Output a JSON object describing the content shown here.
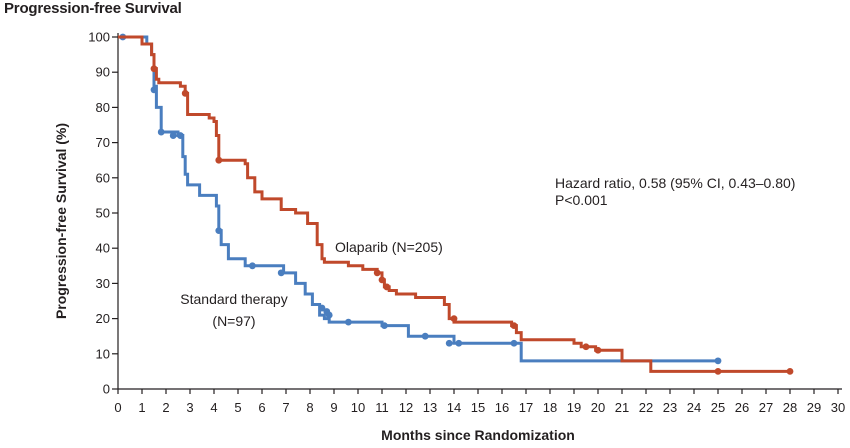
{
  "title": "Progression-free Survival",
  "chart_data": {
    "type": "line",
    "step": true,
    "xlabel": "Months since Randomization",
    "ylabel": "Progression-free Survival (%)",
    "xlim": [
      0,
      30
    ],
    "ylim": [
      0,
      100
    ],
    "xticks": [
      0,
      1,
      2,
      3,
      4,
      5,
      6,
      7,
      8,
      9,
      10,
      11,
      12,
      13,
      14,
      15,
      16,
      17,
      18,
      19,
      20,
      21,
      22,
      23,
      24,
      25,
      26,
      27,
      28,
      29,
      30
    ],
    "yticks": [
      0,
      10,
      20,
      30,
      40,
      50,
      60,
      70,
      80,
      90,
      100
    ],
    "grid": false,
    "annotations": [
      {
        "text": "Hazard ratio, 0.58 (95% CI, 0.43–0.80)"
      },
      {
        "text": "P<0.001"
      }
    ],
    "series": [
      {
        "name": "Olaparib (N=205)",
        "color": "#c0492b",
        "x": [
          0,
          1.0,
          1.4,
          1.5,
          1.6,
          1.7,
          2.6,
          2.8,
          2.9,
          3.8,
          4.0,
          4.1,
          4.2,
          5.3,
          5.4,
          5.7,
          6.0,
          6.8,
          7.4,
          7.9,
          8.3,
          8.5,
          8.6,
          9.6,
          10.2,
          10.8,
          11.0,
          11.1,
          11.3,
          11.6,
          12.4,
          13.6,
          13.8,
          14.0,
          16.4,
          16.6,
          16.8,
          19.0,
          19.3,
          19.9,
          21.0,
          22.2,
          28.0
        ],
        "y": [
          100,
          98,
          95,
          91,
          88,
          87,
          86,
          84,
          78,
          77,
          76,
          72,
          65,
          64,
          60,
          56,
          54,
          51,
          50,
          47,
          41,
          37,
          36,
          35,
          34,
          33,
          31,
          29,
          28,
          27,
          26,
          24,
          20,
          19,
          18,
          16,
          14,
          13,
          12,
          11,
          8,
          5,
          5
        ],
        "censor_points": [
          [
            1.5,
            91
          ],
          [
            2.8,
            84
          ],
          [
            4.2,
            65
          ],
          [
            10.8,
            33
          ],
          [
            11.0,
            31
          ],
          [
            11.2,
            29
          ],
          [
            14.0,
            20
          ],
          [
            16.5,
            18
          ],
          [
            19.5,
            12
          ],
          [
            20.0,
            11
          ],
          [
            25.0,
            5
          ],
          [
            28.0,
            5
          ]
        ]
      },
      {
        "name": "Standard therapy (N=97)",
        "color": "#4a7ebf",
        "x": [
          0,
          1.2,
          1.4,
          1.5,
          1.6,
          1.8,
          2.5,
          2.7,
          2.8,
          2.9,
          3.4,
          4.1,
          4.2,
          4.3,
          4.6,
          5.3,
          6.9,
          7.4,
          7.8,
          8.1,
          8.4,
          8.6,
          8.8,
          11.0,
          12.1,
          14.0,
          16.8,
          25.0
        ],
        "y": [
          100,
          98,
          95,
          86,
          80,
          73,
          72,
          66,
          61,
          58,
          55,
          52,
          45,
          41,
          37,
          35,
          33,
          30,
          27,
          24,
          21,
          20,
          19,
          18,
          15,
          13,
          8,
          8
        ],
        "censor_points": [
          [
            0.2,
            100
          ],
          [
            1.5,
            85
          ],
          [
            1.8,
            73
          ],
          [
            2.3,
            72
          ],
          [
            2.6,
            72
          ],
          [
            4.2,
            45
          ],
          [
            5.6,
            35
          ],
          [
            6.8,
            33
          ],
          [
            8.5,
            23
          ],
          [
            8.7,
            22
          ],
          [
            8.8,
            21
          ],
          [
            9.6,
            19
          ],
          [
            11.1,
            18
          ],
          [
            12.8,
            15
          ],
          [
            13.8,
            13
          ],
          [
            14.2,
            13
          ],
          [
            16.5,
            13
          ],
          [
            25.0,
            8
          ]
        ]
      }
    ],
    "series_labels": [
      {
        "lines": [
          "Olaparib (N=205)"
        ]
      },
      {
        "lines": [
          "Standard therapy",
          "(N=97)"
        ]
      }
    ]
  }
}
